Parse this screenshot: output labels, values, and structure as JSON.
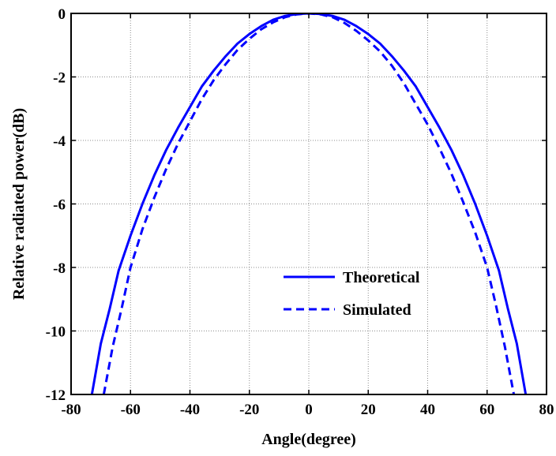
{
  "chart_data": {
    "type": "line",
    "title": "",
    "xlabel": "Angle(degree)",
    "ylabel": "Relative radiated power(dB)",
    "xlim": [
      -80,
      80
    ],
    "ylim": [
      -12,
      0
    ],
    "xticks": [
      -80,
      -60,
      -40,
      -20,
      0,
      20,
      40,
      60,
      80
    ],
    "yticks": [
      0,
      -2,
      -4,
      -6,
      -8,
      -10,
      -12
    ],
    "xtick_labels": [
      "-80",
      "-60",
      "-40",
      "-20",
      "0",
      "20",
      "40",
      "60",
      "80"
    ],
    "ytick_labels": [
      "0",
      "-2",
      "-4",
      "-6",
      "-8",
      "-10",
      "-12"
    ],
    "grid": true,
    "legend_position": "lower-right",
    "series": [
      {
        "name": "Theoretical",
        "style": "solid",
        "color": "#0000ff",
        "x": [
          -73,
          -70,
          -67,
          -64,
          -60,
          -56,
          -52,
          -48,
          -44,
          -40,
          -36,
          -32,
          -28,
          -24,
          -20,
          -16,
          -12,
          -8,
          -4,
          0,
          4,
          8,
          12,
          16,
          20,
          24,
          28,
          32,
          36,
          40,
          44,
          48,
          52,
          56,
          60,
          64,
          67,
          70,
          73
        ],
        "y": [
          -12,
          -10.4,
          -9.3,
          -8.1,
          -7.0,
          -6.0,
          -5.1,
          -4.3,
          -3.6,
          -2.95,
          -2.3,
          -1.8,
          -1.35,
          -0.95,
          -0.65,
          -0.4,
          -0.2,
          -0.08,
          -0.02,
          0,
          -0.02,
          -0.08,
          -0.2,
          -0.4,
          -0.65,
          -0.95,
          -1.35,
          -1.8,
          -2.3,
          -2.95,
          -3.6,
          -4.3,
          -5.1,
          -6.0,
          -7.0,
          -8.1,
          -9.3,
          -10.4,
          -12
        ]
      },
      {
        "name": "Simulated",
        "style": "dashed",
        "color": "#0000ff",
        "x": [
          -69,
          -66,
          -63,
          -60,
          -56,
          -52,
          -48,
          -44,
          -40,
          -36,
          -32,
          -28,
          -24,
          -20,
          -16,
          -12,
          -8,
          -4,
          0,
          4,
          8,
          12,
          16,
          20,
          24,
          28,
          32,
          36,
          40,
          44,
          48,
          52,
          56,
          60,
          63,
          66,
          69
        ],
        "y": [
          -12,
          -10.5,
          -9.3,
          -8.0,
          -6.8,
          -5.8,
          -4.9,
          -4.1,
          -3.4,
          -2.7,
          -2.1,
          -1.6,
          -1.15,
          -0.8,
          -0.5,
          -0.28,
          -0.12,
          -0.03,
          0,
          -0.03,
          -0.12,
          -0.3,
          -0.55,
          -0.85,
          -1.2,
          -1.65,
          -2.2,
          -2.85,
          -3.5,
          -4.25,
          -5.05,
          -5.95,
          -6.9,
          -8.0,
          -9.2,
          -10.5,
          -12
        ]
      }
    ]
  }
}
